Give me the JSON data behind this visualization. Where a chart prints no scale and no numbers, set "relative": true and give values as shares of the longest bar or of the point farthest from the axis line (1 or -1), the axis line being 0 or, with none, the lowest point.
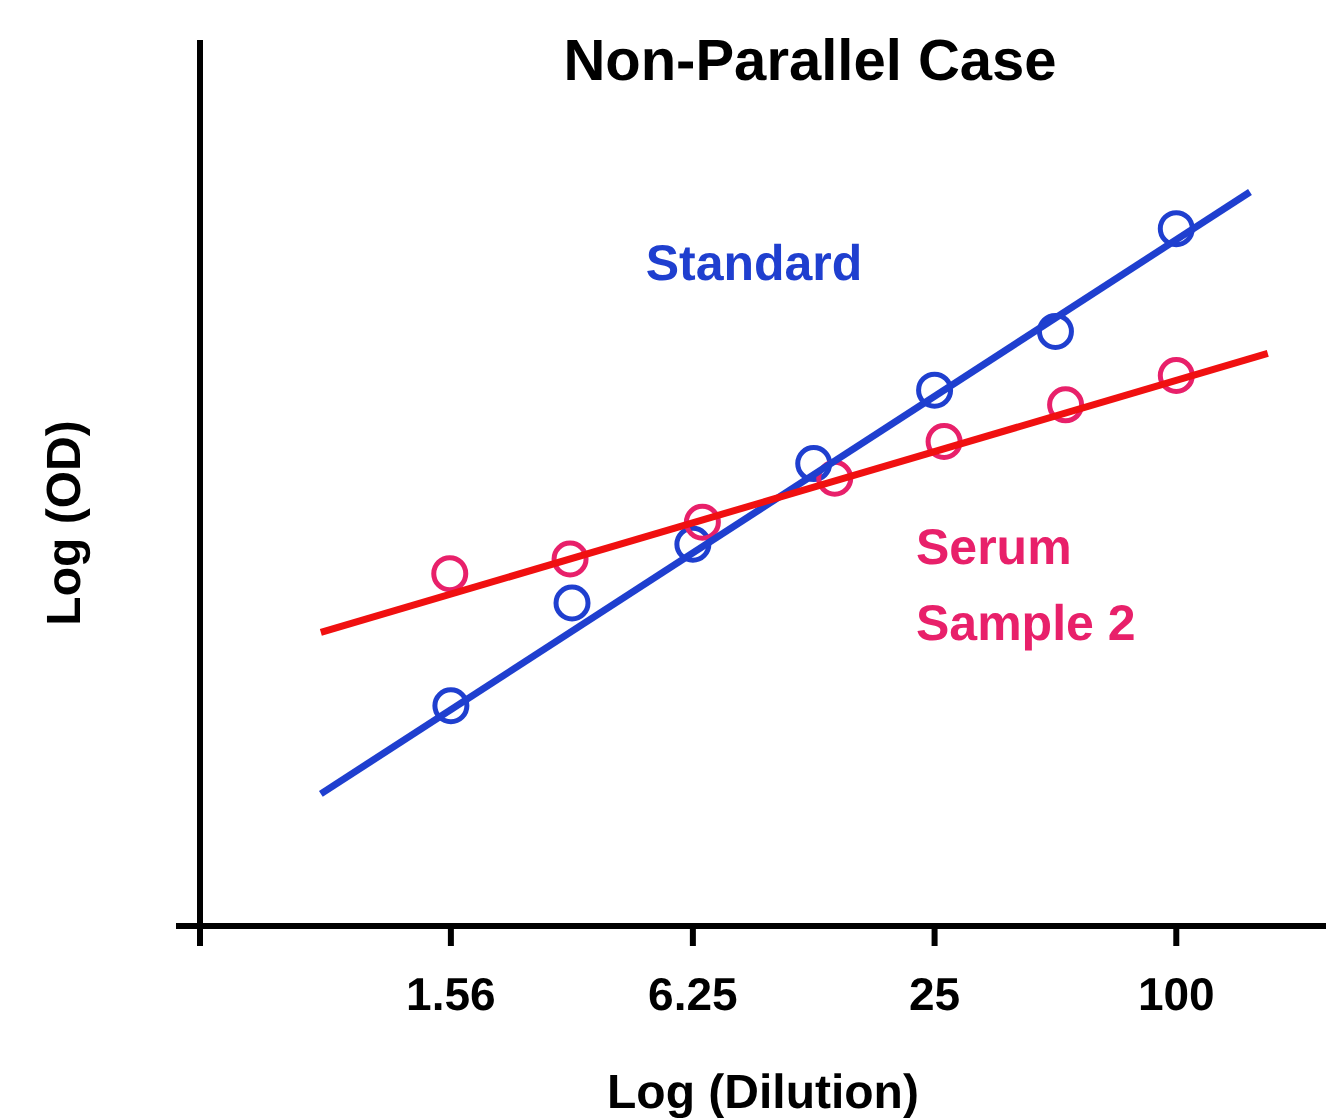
{
  "chart_data": {
    "type": "scatter",
    "title": "Non-Parallel Case",
    "xlabel": "Log (Dilution)",
    "ylabel": "Log (OD)",
    "log": "x",
    "relative": true,
    "marker": "circle",
    "xlim": [
      0.37,
      236
    ],
    "xticks": [
      1.56,
      6.25,
      25,
      100
    ],
    "series": [
      {
        "name": "Standard",
        "color": "#1f3fcf",
        "x": [
          1.56,
          3.125,
          6.25,
          12.5,
          25,
          50,
          100
        ],
        "values": [
          0.3,
          0.44,
          0.52,
          0.63,
          0.73,
          0.81,
          0.95
        ]
      },
      {
        "name": "Serum Sample 2",
        "color": "#e8206a",
        "x": [
          1.55,
          3.09,
          6.6,
          14.1,
          26.4,
          53,
          100
        ],
        "values": [
          0.48,
          0.5,
          0.55,
          0.61,
          0.66,
          0.71,
          0.75
        ]
      },
      {
        "type": "line",
        "marker": "none",
        "color": "#1f3fcf",
        "x": [
          0.74,
          152.6
        ],
        "values": [
          0.18,
          1
        ]
      },
      {
        "type": "line",
        "marker": "none",
        "color": "#f01010",
        "x": [
          0.74,
          169
        ],
        "values": [
          0.4,
          0.78
        ]
      }
    ]
  }
}
